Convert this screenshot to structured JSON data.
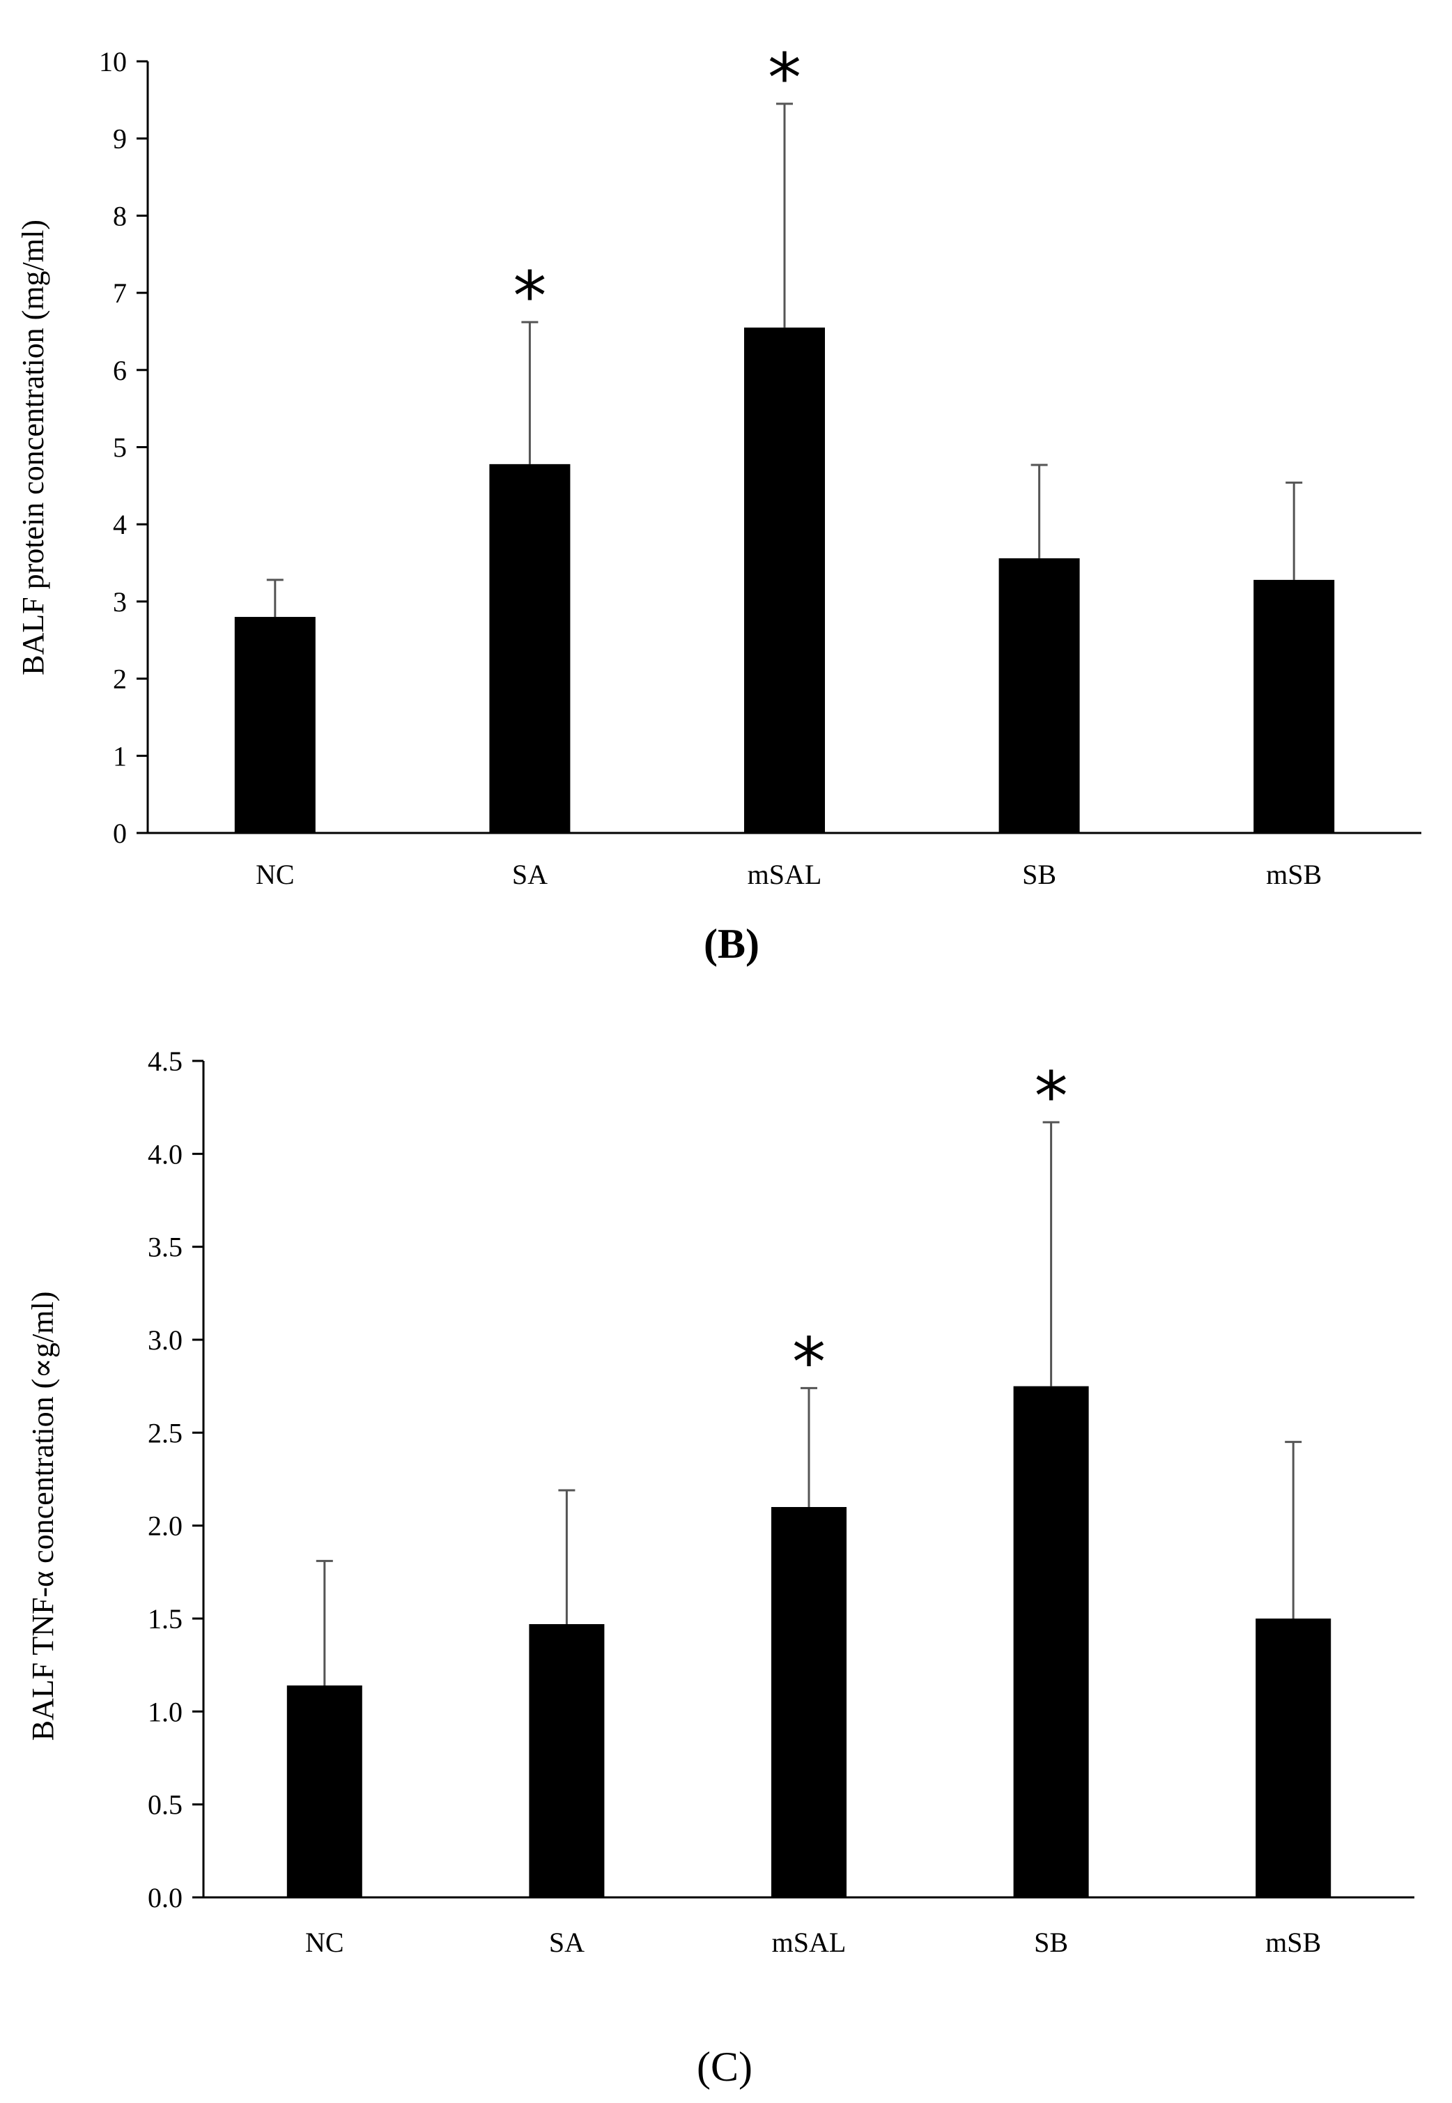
{
  "chart_data": [
    {
      "type": "bar",
      "panel_label": "(B)",
      "ylabel": "BALF protein concentration (mg/ml)",
      "xlabel": "",
      "categories": [
        "NC",
        "SA",
        "mSAL",
        "SB",
        "mSB"
      ],
      "values": [
        2.8,
        4.78,
        6.55,
        3.56,
        3.28
      ],
      "error_upper": [
        3.28,
        6.62,
        9.45,
        4.77,
        4.54
      ],
      "significance": [
        "",
        "*",
        "*",
        "",
        ""
      ],
      "ylim": [
        0,
        10
      ],
      "yticks": [
        "0",
        "1",
        "2",
        "3",
        "4",
        "5",
        "6",
        "7",
        "8",
        "9",
        "10"
      ],
      "grid": false,
      "bar_color": "#000000"
    },
    {
      "type": "bar",
      "panel_label": "(C)",
      "ylabel": "BALF TNF-α concentration (∝g/ml)",
      "xlabel": "",
      "categories": [
        "NC",
        "SA",
        "mSAL",
        "SB",
        "mSB"
      ],
      "values": [
        1.14,
        1.47,
        2.1,
        2.75,
        1.5
      ],
      "error_upper": [
        1.81,
        2.19,
        2.74,
        4.17,
        2.45
      ],
      "significance": [
        "",
        "",
        "*",
        "*",
        ""
      ],
      "ylim": [
        0,
        4.5
      ],
      "yticks": [
        "0.0",
        "0.5",
        "1.0",
        "1.5",
        "2.0",
        "2.5",
        "3.0",
        "3.5",
        "4.0",
        "4.5"
      ],
      "grid": false,
      "bar_color": "#000000"
    }
  ]
}
